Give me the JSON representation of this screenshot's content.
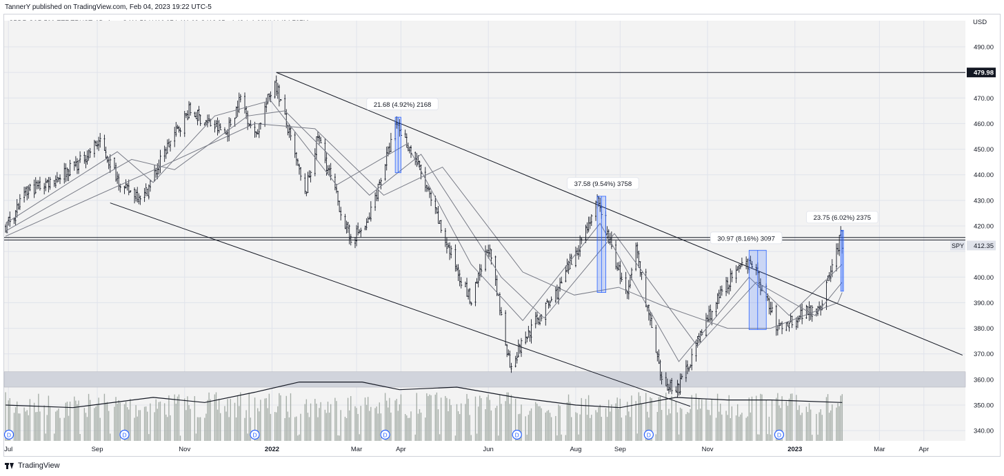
{
  "publisher": {
    "text": "TannerY published on TradingView.com, Feb 04, 2023 19:22 UTC-5"
  },
  "instrument": {
    "text": "SPDR S&P 500 ETF TRUST, 1D, Arca  O411.59  H416.97  L411.09  C412.35  −4.43 (−1.06%)  Vol94.737M"
  },
  "footer": {
    "brand": "TradingView",
    "logo_icon": "tradingview-logo-icon"
  },
  "chart_data": {
    "type": "candlestick",
    "title": "SPDR S&P 500 ETF TRUST, 1D, Arca",
    "currency_label": "USD",
    "ylim": [
      336,
      497
    ],
    "yticks": [
      340,
      350,
      360,
      370,
      380,
      390,
      400,
      410,
      420,
      430,
      440,
      450,
      460,
      470,
      480,
      490
    ],
    "ytick_labels": [
      "340.00",
      "350.00",
      "360.00",
      "370.00",
      "380.00",
      "390.00",
      "400.00",
      "410.00",
      "420.00",
      "430.00",
      "440.00",
      "450.00",
      "460.00",
      "470.00",
      "480.00",
      "490.00"
    ],
    "x_range": [
      "2021-06-28",
      "2023-04-30"
    ],
    "xticks": [
      {
        "date": "2021-07-01",
        "label": "Jul",
        "bold": false
      },
      {
        "date": "2021-09-01",
        "label": "Sep",
        "bold": false
      },
      {
        "date": "2021-11-01",
        "label": "Nov",
        "bold": false
      },
      {
        "date": "2022-01-01",
        "label": "2022",
        "bold": true
      },
      {
        "date": "2022-03-01",
        "label": "Mar",
        "bold": false
      },
      {
        "date": "2022-04-01",
        "label": "Apr",
        "bold": false
      },
      {
        "date": "2022-06-01",
        "label": "Jun",
        "bold": false
      },
      {
        "date": "2022-08-01",
        "label": "Aug",
        "bold": false
      },
      {
        "date": "2022-09-01",
        "label": "Sep",
        "bold": false
      },
      {
        "date": "2022-11-01",
        "label": "Nov",
        "bold": false
      },
      {
        "date": "2023-01-01",
        "label": "2023",
        "bold": true
      },
      {
        "date": "2023-03-01",
        "label": "Mar",
        "bold": false
      },
      {
        "date": "2023-04-01",
        "label": "Apr",
        "bold": false
      }
    ],
    "price_path": [
      [
        "2021-06-29",
        420
      ],
      [
        "2021-07-15",
        434
      ],
      [
        "2021-08-01",
        438
      ],
      [
        "2021-08-20",
        445
      ],
      [
        "2021-09-02",
        453
      ],
      [
        "2021-09-20",
        434
      ],
      [
        "2021-10-04",
        432
      ],
      [
        "2021-10-20",
        451
      ],
      [
        "2021-11-04",
        465
      ],
      [
        "2021-11-30",
        456
      ],
      [
        "2021-12-10",
        470
      ],
      [
        "2021-12-20",
        455
      ],
      [
        "2022-01-03",
        477
      ],
      [
        "2022-01-24",
        432
      ],
      [
        "2022-02-02",
        455
      ],
      [
        "2022-02-24",
        415
      ],
      [
        "2022-03-08",
        420
      ],
      [
        "2022-03-29",
        460
      ],
      [
        "2022-04-12",
        445
      ],
      [
        "2022-05-02",
        414
      ],
      [
        "2022-05-20",
        390
      ],
      [
        "2022-06-01",
        412
      ],
      [
        "2022-06-16",
        366
      ],
      [
        "2022-07-01",
        380
      ],
      [
        "2022-07-20",
        395
      ],
      [
        "2022-08-16",
        429
      ],
      [
        "2022-09-06",
        392
      ],
      [
        "2022-09-12",
        412
      ],
      [
        "2022-09-30",
        358
      ],
      [
        "2022-10-12",
        357
      ],
      [
        "2022-11-01",
        384
      ],
      [
        "2022-11-15",
        398
      ],
      [
        "2022-12-01",
        407
      ],
      [
        "2022-12-20",
        380
      ],
      [
        "2023-01-09",
        387
      ],
      [
        "2023-01-19",
        389
      ],
      [
        "2023-02-02",
        416
      ],
      [
        "2023-02-03",
        412.35
      ]
    ],
    "moving_averages": [
      {
        "name": "MA fast",
        "points": [
          [
            "2021-06-29",
            421
          ],
          [
            "2021-09-15",
            449
          ],
          [
            "2021-10-10",
            437
          ],
          [
            "2021-11-22",
            463
          ],
          [
            "2021-12-31",
            469
          ],
          [
            "2022-02-15",
            436
          ],
          [
            "2022-04-05",
            452
          ],
          [
            "2022-05-20",
            405
          ],
          [
            "2022-06-25",
            383
          ],
          [
            "2022-08-18",
            421
          ],
          [
            "2022-10-12",
            367
          ],
          [
            "2022-11-30",
            400
          ],
          [
            "2022-12-28",
            385
          ],
          [
            "2023-02-03",
            405
          ]
        ]
      },
      {
        "name": "MA medium",
        "points": [
          [
            "2021-06-29",
            418
          ],
          [
            "2021-09-25",
            446
          ],
          [
            "2021-10-25",
            442
          ],
          [
            "2021-12-15",
            463
          ],
          [
            "2022-01-10",
            465
          ],
          [
            "2022-03-10",
            432
          ],
          [
            "2022-04-15",
            448
          ],
          [
            "2022-06-10",
            400
          ],
          [
            "2022-07-10",
            384
          ],
          [
            "2022-08-28",
            417
          ],
          [
            "2022-10-25",
            373
          ],
          [
            "2022-12-05",
            398
          ],
          [
            "2023-01-15",
            385
          ],
          [
            "2023-02-03",
            398
          ]
        ]
      },
      {
        "name": "MA slow",
        "points": [
          [
            "2021-06-29",
            416
          ],
          [
            "2021-10-15",
            443
          ],
          [
            "2021-12-20",
            460
          ],
          [
            "2022-01-31",
            458
          ],
          [
            "2022-03-20",
            432
          ],
          [
            "2022-04-30",
            443
          ],
          [
            "2022-06-25",
            402
          ],
          [
            "2022-07-31",
            393
          ],
          [
            "2022-08-31",
            396
          ],
          [
            "2022-09-30",
            389
          ],
          [
            "2022-11-15",
            380
          ],
          [
            "2022-12-15",
            380
          ],
          [
            "2023-01-31",
            390
          ],
          [
            "2023-02-03",
            394
          ]
        ]
      }
    ],
    "volume_ma": [
      [
        "2021-06-29",
        350
      ],
      [
        "2021-08-15",
        349
      ],
      [
        "2021-10-10",
        353
      ],
      [
        "2021-11-15",
        351
      ],
      [
        "2021-12-20",
        355
      ],
      [
        "2022-01-20",
        359
      ],
      [
        "2022-03-05",
        359
      ],
      [
        "2022-03-31",
        356
      ],
      [
        "2022-05-10",
        357
      ],
      [
        "2022-06-20",
        353
      ],
      [
        "2022-08-01",
        350
      ],
      [
        "2022-09-01",
        349
      ],
      [
        "2022-10-10",
        353
      ],
      [
        "2022-11-15",
        352
      ],
      [
        "2022-12-15",
        352
      ],
      [
        "2023-02-03",
        351
      ]
    ],
    "horizontal_lines": [
      {
        "name": "all-time-high",
        "value": 479.98,
        "from": "2022-01-04",
        "label": "479.98"
      },
      {
        "name": "support-1",
        "value": 415.5,
        "from": "2021-06-28"
      },
      {
        "name": "support-2",
        "value": 414.5,
        "from": "2021-06-28"
      }
    ],
    "trend_lines": [
      {
        "name": "channel-upper",
        "from": [
          "2022-01-04",
          480
        ],
        "to": [
          "2023-04-28",
          369.5
        ]
      },
      {
        "name": "channel-lower",
        "from": [
          "2021-09-10",
          429
        ],
        "to": [
          "2022-10-20",
          349.5
        ]
      }
    ],
    "zone": {
      "name": "volume-zone",
      "from": 357,
      "to": 363
    },
    "measurements": [
      {
        "label": "21.68 (4.92%) 2168",
        "start": "2022-03-28",
        "end": "2022-04-01",
        "low": 440.8,
        "high": 462.5,
        "text_at": [
          "2022-04-02",
          467.5
        ]
      },
      {
        "label": "37.58 (9.54%) 3758",
        "start": "2022-08-16",
        "end": "2022-08-22",
        "low": 394,
        "high": 431.6,
        "text_at": [
          "2022-08-20",
          436.5
        ]
      },
      {
        "label": "30.97 (8.16%) 3097",
        "start": "2022-11-30",
        "end": "2022-12-12",
        "low": 379.5,
        "high": 410.5,
        "text_at": [
          "2022-11-28",
          415.2
        ]
      },
      {
        "label": "23.75 (6.02%) 2375",
        "start": "2023-02-02",
        "end": "2023-02-03",
        "low": 394.5,
        "high": 418.3,
        "text_at": [
          "2023-02-03",
          423.3
        ]
      }
    ],
    "dividend_markers": [
      {
        "date": "2021-06-28",
        "label": "D"
      },
      {
        "date": "2021-09-20",
        "label": "D"
      },
      {
        "date": "2021-12-20",
        "label": "D"
      },
      {
        "date": "2022-03-21",
        "label": "D"
      },
      {
        "date": "2022-06-21",
        "label": "D"
      },
      {
        "date": "2022-09-21",
        "label": "D"
      },
      {
        "date": "2022-12-21",
        "label": "D"
      }
    ],
    "last_price": {
      "symbol": "SPY",
      "value": 412.35,
      "label": "412.35"
    },
    "colors": {
      "bar": "#131722",
      "ma": "#787b86",
      "volume": "#9ea7a0",
      "zone": "#d1d4dc",
      "measure": "#2962ff",
      "grid": "#e0e3eb"
    }
  }
}
